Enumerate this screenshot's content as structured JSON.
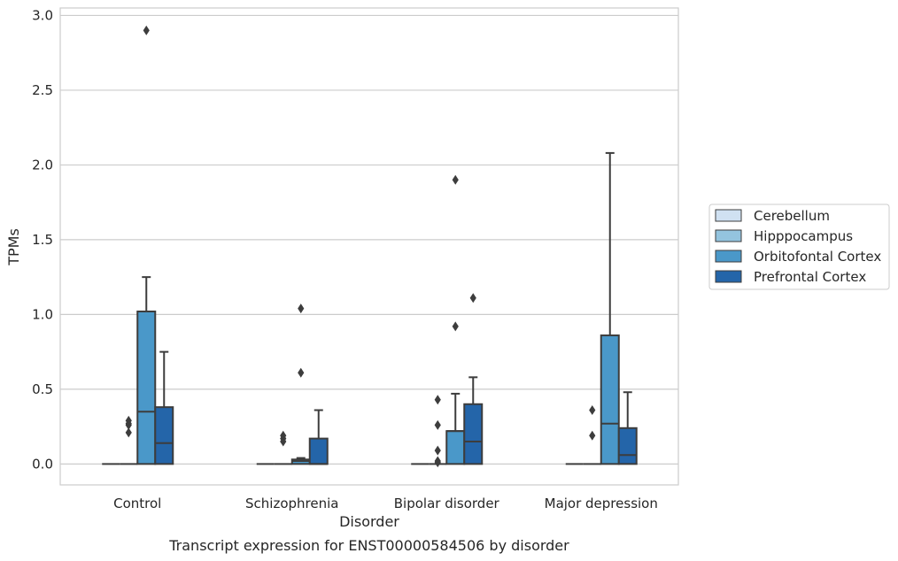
{
  "chart_data": {
    "type": "box",
    "caption": "Transcript expression for ENST00000584506 by disorder",
    "xlabel": "Disorder",
    "ylabel": "TPMs",
    "ylim": [
      -0.14,
      3.05
    ],
    "yticks": [
      "0.0",
      "0.5",
      "1.0",
      "1.5",
      "2.0",
      "2.5",
      "3.0"
    ],
    "grid": "horizontal",
    "legend_position": "right",
    "categories": [
      "Control",
      "Schizophrenia",
      "Bipolar disorder",
      "Major depression"
    ],
    "series": [
      {
        "name": "Cerebellum",
        "color": "#d0e1f2",
        "boxes": [
          {
            "q1": 0,
            "median": 0,
            "q3": 0,
            "whisker_low": 0,
            "whisker_high": 0,
            "outliers": []
          },
          {
            "q1": 0,
            "median": 0,
            "q3": 0,
            "whisker_low": 0,
            "whisker_high": 0,
            "outliers": []
          },
          {
            "q1": 0,
            "median": 0,
            "q3": 0,
            "whisker_low": 0,
            "whisker_high": 0,
            "outliers": []
          },
          {
            "q1": 0,
            "median": 0,
            "q3": 0,
            "whisker_low": 0,
            "whisker_high": 0,
            "outliers": []
          }
        ]
      },
      {
        "name": "Hipppocampus",
        "color": "#94c4df",
        "boxes": [
          {
            "q1": 0,
            "median": 0,
            "q3": 0,
            "whisker_low": 0,
            "whisker_high": 0,
            "outliers": [
              0.26,
              0.21,
              0.27,
              0.29
            ]
          },
          {
            "q1": 0,
            "median": 0,
            "q3": 0,
            "whisker_low": 0,
            "whisker_high": 0,
            "outliers": [
              0.15,
              0.17,
              0.19
            ]
          },
          {
            "q1": 0,
            "median": 0,
            "q3": 0,
            "whisker_low": 0,
            "whisker_high": 0,
            "outliers": [
              0.09,
              0.02,
              0.01,
              0.26,
              0.43
            ]
          },
          {
            "q1": 0,
            "median": 0,
            "q3": 0,
            "whisker_low": 0,
            "whisker_high": 0,
            "outliers": [
              0.19,
              0.36
            ]
          }
        ]
      },
      {
        "name": "Orbitofontal Cortex",
        "color": "#4a98c9",
        "boxes": [
          {
            "q1": 0,
            "median": 0.35,
            "q3": 1.02,
            "whisker_low": 0,
            "whisker_high": 1.25,
            "outliers": [
              2.9
            ]
          },
          {
            "q1": 0,
            "median": 0.02,
            "q3": 0.03,
            "whisker_low": 0,
            "whisker_high": 0.04,
            "outliers": [
              0.61,
              1.04
            ]
          },
          {
            "q1": 0,
            "median": 0.22,
            "q3": 0.22,
            "whisker_low": 0,
            "whisker_high": 0.47,
            "outliers": [
              0.92,
              1.9
            ]
          },
          {
            "q1": 0,
            "median": 0.27,
            "q3": 0.86,
            "whisker_low": 0,
            "whisker_high": 2.08,
            "outliers": []
          }
        ]
      },
      {
        "name": "Prefrontal Cortex",
        "color": "#2465a9",
        "boxes": [
          {
            "q1": 0,
            "median": 0.14,
            "q3": 0.38,
            "whisker_low": 0,
            "whisker_high": 0.75,
            "outliers": []
          },
          {
            "q1": 0,
            "median": 0,
            "q3": 0.17,
            "whisker_low": 0,
            "whisker_high": 0.36,
            "outliers": []
          },
          {
            "q1": 0,
            "median": 0.15,
            "q3": 0.4,
            "whisker_low": 0,
            "whisker_high": 0.58,
            "outliers": [
              1.11
            ]
          },
          {
            "q1": 0,
            "median": 0.06,
            "q3": 0.24,
            "whisker_low": 0,
            "whisker_high": 0.48,
            "outliers": []
          }
        ]
      }
    ]
  }
}
